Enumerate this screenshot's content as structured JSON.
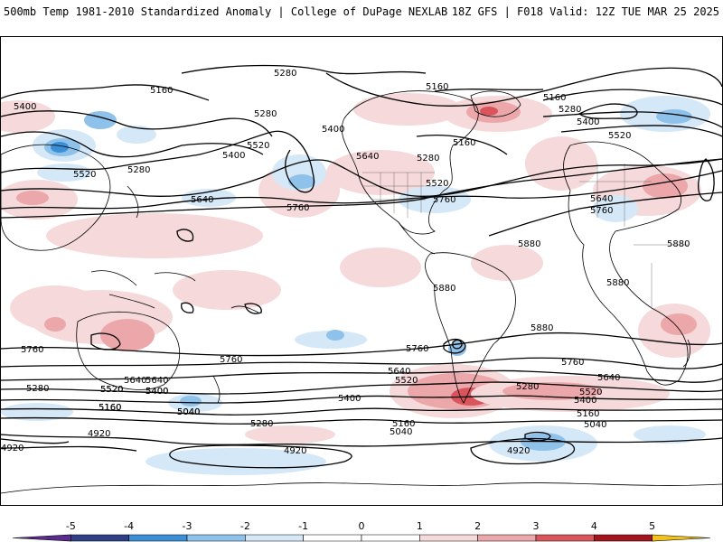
{
  "header": {
    "title_left": "500mb Temp 1981-2010 Standardized Anomaly | College of DuPage NEXLAB",
    "title_right": "18Z GFS | F018 Valid: 12Z TUE MAR 25 2025"
  },
  "map": {
    "contour_labels": [
      "5280",
      "5160",
      "5400",
      "5280",
      "5520",
      "5400",
      "5280",
      "5520",
      "5640",
      "5400",
      "5640",
      "5280",
      "5160",
      "5520",
      "5760",
      "5760",
      "5160",
      "5160",
      "5280",
      "5400",
      "5520",
      "5640",
      "5760",
      "5880",
      "5880",
      "5880",
      "5880",
      "5760",
      "5880",
      "5760",
      "5640",
      "5520",
      "5760",
      "5640",
      "5520",
      "5400",
      "5280",
      "5160",
      "5040",
      "5640",
      "5520",
      "5400",
      "5280",
      "5160",
      "5040",
      "4920",
      "4920",
      "4920",
      "4920",
      "5400",
      "5280",
      "5160",
      "5040",
      "5760",
      "5640",
      "5520",
      "5400",
      "5160",
      "5040"
    ],
    "anomaly_colors": {
      "neg_strong": "#3a8fd6",
      "neg_moderate": "#8fc2ea",
      "neg_weak": "#d5e8f7",
      "pos_weak": "#f6d9da",
      "pos_moderate": "#eba7aa",
      "pos_strong": "#d9555c"
    }
  },
  "colorbar": {
    "ticks": [
      "-5",
      "-4",
      "-3",
      "-2",
      "-1",
      "0",
      "1",
      "2",
      "3",
      "4",
      "5"
    ],
    "colors": [
      "#5b2c8f",
      "#2f3f86",
      "#3a8fd6",
      "#8fc2ea",
      "#d5e8f7",
      "#ffffff",
      "#ffffff",
      "#f6d9da",
      "#eba7aa",
      "#d9555c",
      "#a3141f",
      "#f2c21b"
    ]
  }
}
